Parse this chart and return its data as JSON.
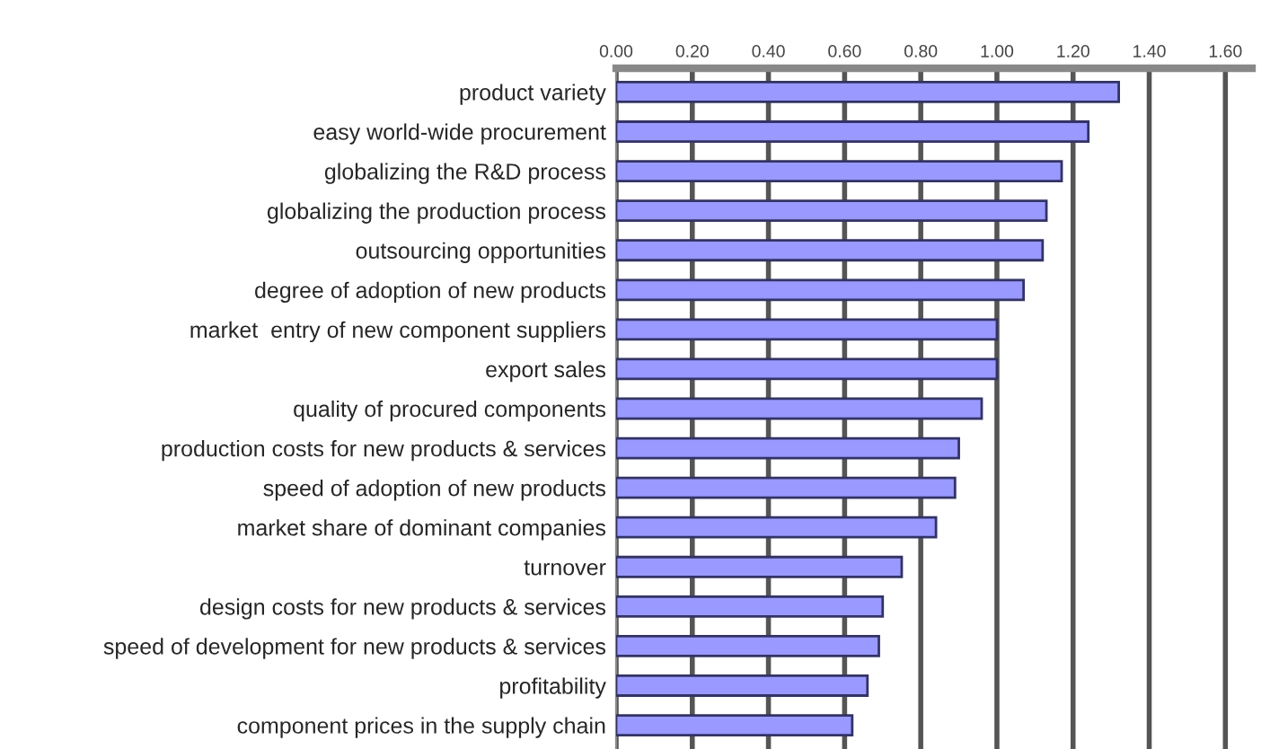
{
  "chart_data": {
    "type": "bar",
    "orientation": "horizontal",
    "categories": [
      "product variety",
      "easy world-wide procurement",
      "globalizing the R&D process",
      "globalizing the production process",
      "outsourcing opportunities",
      "degree of adoption of new products",
      "market  entry of new component suppliers",
      "export sales",
      "quality of procured components",
      "production costs for new products & services",
      "speed of adoption of new products",
      "market share of dominant companies",
      "turnover",
      "design costs for new products & services",
      "speed of development for new products & services",
      "profitability",
      "component prices in the supply chain"
    ],
    "values": [
      1.32,
      1.24,
      1.17,
      1.13,
      1.12,
      1.07,
      1.0,
      1.0,
      0.96,
      0.9,
      0.89,
      0.84,
      0.75,
      0.7,
      0.69,
      0.66,
      0.62
    ],
    "color": "#9999ff",
    "xlim": [
      0,
      1.67
    ],
    "xticks": [
      {
        "value": 0,
        "label": "0.00"
      },
      {
        "value": 0.2,
        "label": "0.20"
      },
      {
        "value": 0.4,
        "label": "0.40"
      },
      {
        "value": 0.6,
        "label": "0.60"
      },
      {
        "value": 0.8,
        "label": "0.80"
      },
      {
        "value": 1.0,
        "label": "1.00"
      },
      {
        "value": 1.2,
        "label": "1.20"
      },
      {
        "value": 1.4,
        "label": "1.40"
      },
      {
        "value": 1.6,
        "label": "1.60"
      }
    ],
    "grid": "x"
  }
}
